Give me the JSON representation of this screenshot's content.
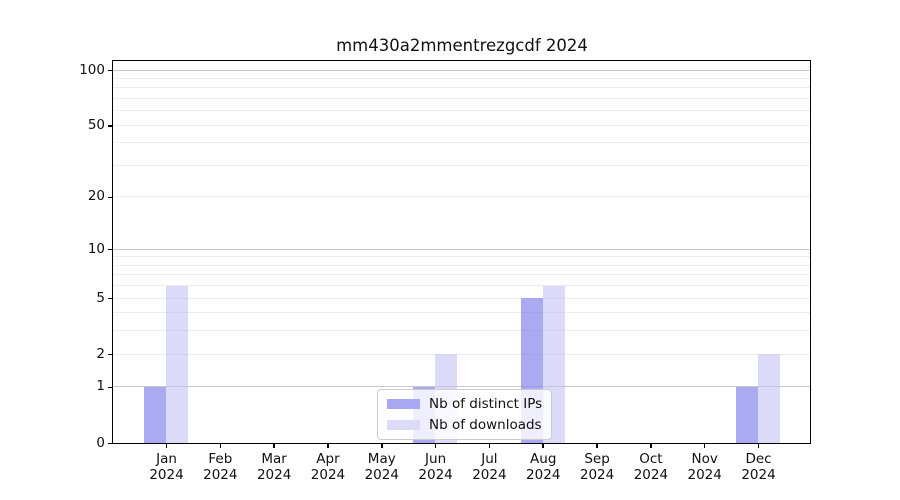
{
  "chart_data": {
    "type": "bar",
    "title": "mm430a2mmentrezgcdf 2024",
    "scale": "log1p",
    "categories": [
      "Jan",
      "Feb",
      "Mar",
      "Apr",
      "May",
      "Jun",
      "Jul",
      "Aug",
      "Sep",
      "Oct",
      "Nov",
      "Dec"
    ],
    "year": "2024",
    "series": [
      {
        "name": "Nb of distinct IPs",
        "color": "#a9a9f3",
        "fill": "rgba(134,134,238,0.7)",
        "values": [
          1,
          0,
          0,
          0,
          0,
          1,
          0,
          5,
          0,
          0,
          0,
          1
        ]
      },
      {
        "name": "Nb of downloads",
        "color": "#dcdcf8",
        "fill": "rgba(190,190,244,0.55)",
        "values": [
          6,
          0,
          0,
          0,
          0,
          2,
          0,
          6,
          0,
          0,
          0,
          2
        ]
      }
    ],
    "ylim": [
      0,
      112
    ],
    "ytick_labels": [
      100,
      50,
      20,
      10,
      5,
      2,
      1,
      0
    ],
    "major_gridlines": [
      1,
      10,
      100
    ],
    "minor_gridlines": [
      2,
      3,
      4,
      5,
      6,
      7,
      8,
      9,
      20,
      30,
      40,
      50,
      60,
      70,
      80,
      90
    ],
    "grid_on": true,
    "legend_position": "lower center"
  }
}
